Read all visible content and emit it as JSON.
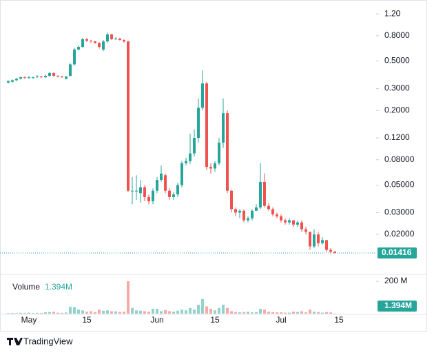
{
  "chart_data": {
    "type": "candlestick",
    "categories": [
      null,
      null,
      null,
      null,
      null,
      "May",
      null,
      null,
      null,
      null,
      null,
      null,
      null,
      null,
      null,
      null,
      null,
      null,
      null,
      "15",
      null,
      null,
      null,
      null,
      null,
      null,
      null,
      null,
      null,
      null,
      null,
      null,
      null,
      null,
      null,
      null,
      "Jun",
      null,
      null,
      null,
      null,
      null,
      null,
      null,
      null,
      null,
      null,
      null,
      null,
      null,
      "15",
      null,
      null,
      null,
      null,
      null,
      null,
      null,
      null,
      null,
      null,
      null,
      null,
      null,
      null,
      null,
      "Jul",
      null,
      null,
      null,
      null,
      null,
      null,
      null,
      null,
      null,
      null,
      null,
      null,
      null,
      "15"
    ],
    "open": [
      0.335,
      0.34,
      0.35,
      0.36,
      0.37,
      0.37,
      0.365,
      0.37,
      0.375,
      0.37,
      0.38,
      0.4,
      0.38,
      0.375,
      0.36,
      0.38,
      0.47,
      0.62,
      0.65,
      0.75,
      0.73,
      0.72,
      0.7,
      0.62,
      0.72,
      0.82,
      0.75,
      0.76,
      0.74,
      0.72,
      0.045,
      0.045,
      0.043,
      0.048,
      0.04,
      0.037,
      0.045,
      0.055,
      0.06,
      0.045,
      0.04,
      0.042,
      0.05,
      0.075,
      0.078,
      0.09,
      0.12,
      0.21,
      0.33,
      0.07,
      0.068,
      0.075,
      0.11,
      0.19,
      0.045,
      0.032,
      0.03,
      0.031,
      0.026,
      0.027,
      0.031,
      0.033,
      0.053,
      0.034,
      0.032,
      0.029,
      0.028,
      0.026,
      0.025,
      0.026,
      0.024,
      0.025,
      0.022,
      0.021,
      0.016,
      0.02,
      0.017,
      0.018,
      0.015,
      0.0145,
      null
    ],
    "high": [
      0.35,
      0.355,
      0.365,
      0.375,
      0.375,
      0.38,
      0.375,
      0.385,
      0.38,
      0.39,
      0.41,
      0.405,
      0.385,
      0.38,
      0.38,
      0.48,
      0.64,
      0.67,
      0.77,
      0.77,
      0.74,
      0.73,
      0.71,
      0.74,
      0.85,
      0.83,
      0.78,
      0.77,
      0.75,
      0.73,
      0.058,
      0.06,
      0.055,
      0.05,
      0.042,
      0.047,
      0.058,
      0.072,
      0.062,
      0.047,
      0.044,
      0.052,
      0.078,
      0.083,
      0.13,
      0.14,
      0.25,
      0.42,
      0.34,
      0.075,
      0.078,
      0.12,
      0.25,
      0.2,
      0.046,
      0.033,
      0.032,
      0.032,
      0.028,
      0.032,
      0.035,
      0.075,
      0.062,
      0.036,
      0.033,
      0.03,
      0.029,
      0.027,
      0.027,
      0.026,
      0.026,
      0.026,
      0.023,
      0.021,
      0.022,
      0.021,
      0.019,
      0.018,
      0.0155,
      0.0147,
      null
    ],
    "low": [
      0.33,
      0.335,
      0.345,
      0.355,
      0.36,
      0.36,
      0.36,
      0.365,
      0.365,
      0.365,
      0.375,
      0.375,
      0.37,
      0.365,
      0.355,
      0.375,
      0.46,
      0.61,
      0.64,
      0.71,
      0.7,
      0.69,
      0.63,
      0.6,
      0.7,
      0.74,
      0.74,
      0.73,
      0.7,
      0.044,
      0.035,
      0.038,
      0.036,
      0.037,
      0.035,
      0.035,
      0.043,
      0.053,
      0.043,
      0.038,
      0.038,
      0.04,
      0.048,
      0.072,
      0.074,
      0.085,
      0.11,
      0.2,
      0.066,
      0.062,
      0.064,
      0.072,
      0.1,
      0.043,
      0.03,
      0.028,
      0.027,
      0.025,
      0.025,
      0.026,
      0.031,
      0.032,
      0.033,
      0.031,
      0.028,
      0.027,
      0.025,
      0.024,
      0.024,
      0.023,
      0.023,
      0.021,
      0.02,
      0.015,
      0.0155,
      0.016,
      0.0165,
      0.0145,
      0.014,
      0.014,
      null
    ],
    "close": [
      0.345,
      0.35,
      0.36,
      0.37,
      0.365,
      0.37,
      0.37,
      0.375,
      0.37,
      0.38,
      0.4,
      0.38,
      0.375,
      0.37,
      0.375,
      0.47,
      0.62,
      0.65,
      0.75,
      0.73,
      0.72,
      0.7,
      0.65,
      0.72,
      0.82,
      0.75,
      0.76,
      0.74,
      0.72,
      0.045,
      0.045,
      0.045,
      0.048,
      0.04,
      0.037,
      0.045,
      0.055,
      0.062,
      0.045,
      0.04,
      0.042,
      0.05,
      0.075,
      0.078,
      0.09,
      0.12,
      0.21,
      0.33,
      0.07,
      0.068,
      0.075,
      0.11,
      0.19,
      0.045,
      0.032,
      0.03,
      0.031,
      0.026,
      0.027,
      0.031,
      0.033,
      0.053,
      0.034,
      0.032,
      0.029,
      0.028,
      0.026,
      0.025,
      0.026,
      0.024,
      0.025,
      0.022,
      0.021,
      0.016,
      0.02,
      0.017,
      0.018,
      0.015,
      0.0145,
      0.01416,
      null
    ],
    "ylim": [
      0.0099,
      1.367
    ],
    "log_scale": true,
    "yticks": [
      {
        "value": 1.2,
        "label": "1.20"
      },
      {
        "value": 0.8,
        "label": "0.8000"
      },
      {
        "value": 0.5,
        "label": "0.5000"
      },
      {
        "value": 0.3,
        "label": "0.3000"
      },
      {
        "value": 0.2,
        "label": "0.2000"
      },
      {
        "value": 0.12,
        "label": "0.1200"
      },
      {
        "value": 0.08,
        "label": "0.08000"
      },
      {
        "value": 0.05,
        "label": "0.05000"
      },
      {
        "value": 0.03,
        "label": "0.03000"
      },
      {
        "value": 0.02,
        "label": "0.02000"
      }
    ],
    "up_color": "#26a69a",
    "down_color": "#ef5350",
    "last_price": 0.01416,
    "volume": {
      "label": "Volume",
      "values": [
        3000000,
        4000000,
        3000000,
        5000000,
        4000000,
        6000000,
        3000000,
        5000000,
        4000000,
        8000000,
        10000000,
        12000000,
        6000000,
        5000000,
        7000000,
        42000000,
        40000000,
        25000000,
        20000000,
        12000000,
        15000000,
        10000000,
        25000000,
        18000000,
        20000000,
        15000000,
        14000000,
        10000000,
        12000000,
        200000000,
        35000000,
        20000000,
        18000000,
        15000000,
        12000000,
        30000000,
        30000000,
        15000000,
        22000000,
        15000000,
        12000000,
        18000000,
        25000000,
        20000000,
        35000000,
        25000000,
        55000000,
        90000000,
        45000000,
        30000000,
        20000000,
        35000000,
        55000000,
        35000000,
        15000000,
        10000000,
        8000000,
        10000000,
        12000000,
        8000000,
        10000000,
        30000000,
        25000000,
        12000000,
        10000000,
        8000000,
        8000000,
        6000000,
        6000000,
        12000000,
        10000000,
        15000000,
        8000000,
        25000000,
        12000000,
        10000000,
        6000000,
        10000000,
        8000000,
        1394000,
        null
      ],
      "value_labels": [
        null,
        null,
        null,
        null,
        null,
        null,
        null,
        null,
        null,
        null,
        null,
        null,
        null,
        null,
        null,
        null,
        null,
        null,
        null,
        null,
        null,
        null,
        null,
        null,
        null,
        null,
        null,
        null,
        null,
        null,
        null,
        null,
        null,
        null,
        null,
        null,
        null,
        null,
        null,
        null,
        null,
        null,
        null,
        null,
        null,
        null,
        null,
        null,
        null,
        null,
        null,
        null,
        null,
        null,
        null,
        null,
        null,
        null,
        null,
        null,
        null,
        null,
        null,
        null,
        null,
        null,
        null,
        null,
        null,
        null,
        null,
        null,
        null,
        null,
        null,
        null,
        null,
        null,
        null,
        "1.394M",
        null
      ],
      "ylim": [
        0,
        234000000
      ],
      "yticks": [
        {
          "value": 200000000,
          "label": "200 M"
        }
      ]
    },
    "brand": "TradingView"
  }
}
